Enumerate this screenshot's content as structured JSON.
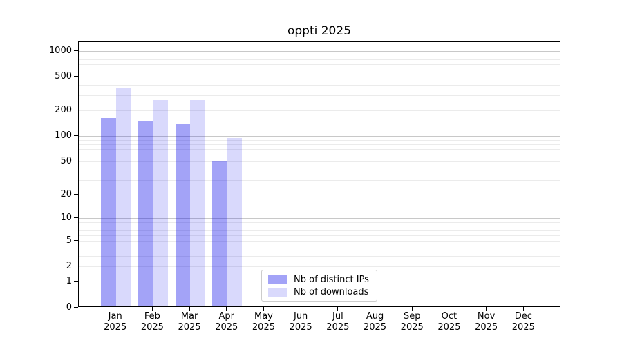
{
  "chart_data": {
    "type": "bar",
    "title": "oppti 2025",
    "categories": [
      "Jan",
      "Feb",
      "Mar",
      "Apr",
      "May",
      "Jun",
      "Jul",
      "Aug",
      "Sep",
      "Oct",
      "Nov",
      "Dec"
    ],
    "year": "2025",
    "series": [
      {
        "name": "Nb of distinct IPs",
        "slug": "distinct-ips",
        "color": "rgba(0,0,232,0.36)",
        "values": [
          165,
          150,
          140,
          51,
          0,
          0,
          0,
          0,
          0,
          0,
          0,
          0
        ]
      },
      {
        "name": "Nb of downloads",
        "slug": "downloads",
        "color": "rgba(0,0,232,0.15)",
        "values": [
          370,
          265,
          265,
          95,
          0,
          0,
          0,
          0,
          0,
          0,
          0,
          0
        ]
      }
    ],
    "yticks": [
      1000,
      500,
      200,
      100,
      50,
      20,
      10,
      5,
      2,
      1,
      0
    ],
    "scale": "log1p",
    "ylim": [
      0,
      1275
    ],
    "grid": "horizontal",
    "legend_position": "lower center"
  },
  "colors": {
    "grid_major": "#c8c8c8",
    "grid_minor": "#ebebeb",
    "spine": "#000000",
    "legend_border": "#cccccc"
  }
}
